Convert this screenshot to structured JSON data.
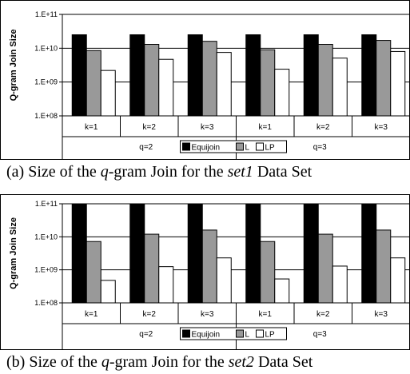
{
  "chart_data": [
    {
      "type": "bar",
      "ylabel": "Q-gram Join Size",
      "yscale": "log",
      "ylim": [
        100000000,
        100000000000
      ],
      "yticks": [
        "1.E+08",
        "1.E+09",
        "1.E+10",
        "1.E+11"
      ],
      "categories": [
        "k=1",
        "k=2",
        "k=3",
        "k=1",
        "k=2",
        "k=3"
      ],
      "groups": [
        {
          "label": "q=2",
          "span": 3
        },
        {
          "label": "q=3",
          "span": 3
        }
      ],
      "legend_position": "bottom-center",
      "grid": true,
      "series": [
        {
          "name": "Equijoin",
          "color": "#000000",
          "values": [
            25000000000,
            25000000000,
            25000000000,
            25000000000,
            25000000000,
            25000000000
          ]
        },
        {
          "name": "L",
          "color": "#999999",
          "values": [
            8500000000,
            13000000000,
            16000000000,
            9000000000,
            13000000000,
            17000000000
          ]
        },
        {
          "name": "LP",
          "color": "#ffffff",
          "values": [
            2200000000,
            4700000000,
            7500000000,
            2400000000,
            5100000000,
            8000000000
          ]
        }
      ],
      "caption": {
        "pre": "(a) Size of the ",
        "q": "q",
        "mid": "-gram Join for the ",
        "set": "set1",
        "post": " Data Set"
      }
    },
    {
      "type": "bar",
      "ylabel": "Q-gram Join Size",
      "yscale": "log",
      "ylim": [
        100000000,
        100000000000
      ],
      "yticks": [
        "1.E+08",
        "1.E+09",
        "1.E+10",
        "1.E+11"
      ],
      "categories": [
        "k=1",
        "k=2",
        "k=3",
        "k=1",
        "k=2",
        "k=3"
      ],
      "groups": [
        {
          "label": "q=2",
          "span": 3
        },
        {
          "label": "q=3",
          "span": 3
        }
      ],
      "legend_position": "bottom-center",
      "grid": true,
      "series": [
        {
          "name": "Equijoin",
          "color": "#000000",
          "values": [
            100000000000,
            100000000000,
            100000000000,
            100000000000,
            100000000000,
            100000000000
          ]
        },
        {
          "name": "L",
          "color": "#999999",
          "values": [
            7200000000,
            12000000000,
            16000000000,
            7200000000,
            12000000000,
            16000000000
          ]
        },
        {
          "name": "LP",
          "color": "#ffffff",
          "values": [
            480000000,
            1250000000,
            2300000000,
            530000000,
            1300000000,
            2300000000
          ]
        }
      ],
      "caption": {
        "pre": "(b) Size of the ",
        "q": "q",
        "mid": "-gram Join for the ",
        "set": "set2",
        "post": " Data Set"
      }
    }
  ]
}
